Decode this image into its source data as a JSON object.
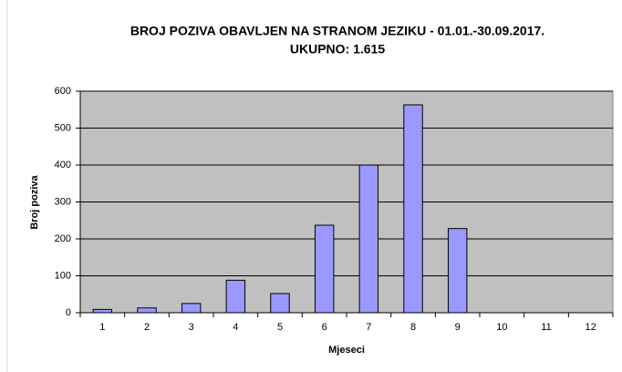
{
  "chart_data": {
    "type": "bar",
    "title": "BROJ POZIVA OBAVLJEN NA STRANOM JEZIKU - 01.01.-30.09.2017.",
    "subtitle": "UKUPNO: 1.615",
    "x_label": "Mjeseci",
    "y_label": "Broj poziva",
    "categories": [
      "1",
      "2",
      "3",
      "4",
      "5",
      "6",
      "7",
      "8",
      "9",
      "10",
      "11",
      "12"
    ],
    "values": [
      9,
      13,
      25,
      88,
      52,
      237,
      400,
      563,
      228,
      null,
      null,
      null
    ],
    "color": "#9999ff",
    "ylim": [
      0,
      600
    ],
    "yticks": [
      0,
      100,
      200,
      300,
      400,
      500,
      600
    ],
    "grid": true
  }
}
